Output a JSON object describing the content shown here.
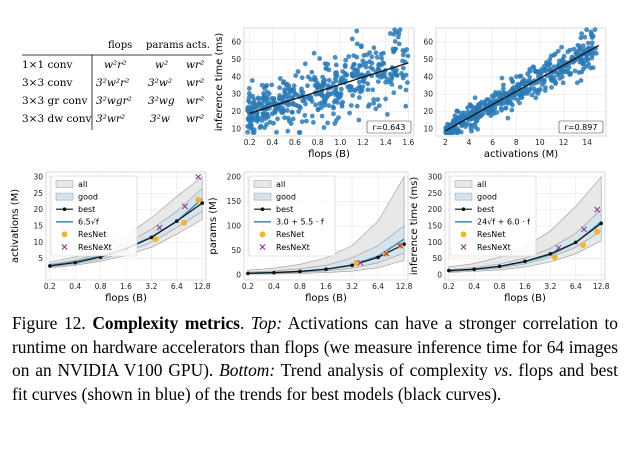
{
  "table": {
    "headers": [
      "flops",
      "params",
      "acts."
    ],
    "rows": [
      {
        "label": "1×1 conv",
        "flops": "w²r²",
        "params": "w²",
        "acts": "wr²"
      },
      {
        "label": "3×3 conv",
        "flops": "3²w²r²",
        "params": "3²w²",
        "acts": "wr²"
      },
      {
        "label": "3×3 gr conv",
        "flops": "3²wgr²",
        "params": "3²wg",
        "acts": "wr²"
      },
      {
        "label": "3×3 dw conv",
        "flops": "3²wr²",
        "params": "3²w",
        "acts": "wr²"
      }
    ]
  },
  "caption": {
    "figure_label": "Figure 12.",
    "title": "Complexity metrics",
    "top_label": "Top:",
    "top_text": "Activations can have a stronger correlation to runtime on hardware accelerators than flops (we measure inference time for 64 images on an NVIDIA V100 GPU).",
    "bottom_label": "Bottom:",
    "bottom_text_1": "Trend analysis of complexity",
    "vs": "vs",
    "bottom_text_2": ". flops and best fit curves (shown in blue) of the trends for best models (black curves)."
  },
  "colors": {
    "scatter": "#2a7ab7",
    "fit_line": "#111111",
    "best": "#111111",
    "fit_curve": "#4f8fb5",
    "resnet": "#f3b531",
    "resnext": "#8b2f8e",
    "all_band": "#e8e8e8",
    "good_band": "#d4e3ed"
  },
  "chart_data": [
    {
      "type": "scatter",
      "id": "top-left",
      "xlabel": "flops (B)",
      "ylabel": "inference time (ms)",
      "xlim": [
        0.15,
        1.65
      ],
      "ylim": [
        6,
        68
      ],
      "xticks": [
        0.2,
        0.4,
        0.6,
        0.8,
        1.0,
        1.2,
        1.4,
        1.6
      ],
      "xtick_labels": [
        "0.2",
        "0.4",
        "0.6",
        "0.8",
        "1.0",
        "1.2",
        "1.4",
        "1.6"
      ],
      "yticks": [
        10,
        20,
        30,
        40,
        50,
        60
      ],
      "ytick_labels": [
        "10",
        "20",
        "30",
        "40",
        "50",
        "60"
      ],
      "fit": {
        "x": [
          0.2,
          1.6
        ],
        "y": [
          19,
          48
        ]
      },
      "correlation_label": "r=0.643",
      "point_count": 480,
      "seed": 17,
      "spread": 12,
      "x_dist": [
        0.18,
        1.6
      ]
    },
    {
      "type": "scatter",
      "id": "top-right",
      "xlabel": "activations (M)",
      "ylabel": "",
      "xlim": [
        1.2,
        15.6
      ],
      "ylim": [
        6,
        68
      ],
      "xticks": [
        2,
        4,
        6,
        8,
        10,
        12,
        14
      ],
      "xtick_labels": [
        "2",
        "4",
        "6",
        "8",
        "10",
        "12",
        "14"
      ],
      "yticks": [
        10,
        20,
        30,
        40,
        50,
        60
      ],
      "ytick_labels": [
        "10",
        "20",
        "30",
        "40",
        "50",
        "60"
      ],
      "fit": {
        "x": [
          2,
          15
        ],
        "y": [
          9,
          58
        ]
      },
      "correlation_label": "r=0.897",
      "point_count": 480,
      "seed": 29,
      "spread": 6,
      "x_dist": [
        2,
        15
      ]
    },
    {
      "type": "line",
      "id": "bottom-left",
      "xlabel": "flops (B)",
      "ylabel": "activations (M)",
      "x_log2": true,
      "xticks": [
        0.2,
        0.4,
        0.8,
        1.6,
        3.2,
        6.4,
        12.8
      ],
      "xtick_labels": [
        "0.2",
        "0.4",
        "0.8",
        "1.6",
        "3.2",
        "6.4",
        "12.8"
      ],
      "ylim": [
        0,
        30
      ],
      "yticks": [
        5,
        10,
        15,
        20,
        25,
        30
      ],
      "ytick_labels": [
        "5",
        "10",
        "15",
        "20",
        "25",
        "30"
      ],
      "legend": [
        "all",
        "good",
        "best",
        "6.5√f",
        "ResNet",
        "ResNeXt"
      ],
      "x": [
        0.2,
        0.4,
        0.8,
        1.6,
        3.2,
        6.4,
        12.8
      ],
      "best": [
        2.8,
        3.8,
        5.5,
        8.0,
        11.5,
        16.5,
        22.0
      ],
      "fit": [
        2.9,
        4.1,
        5.8,
        8.2,
        11.6,
        16.4,
        23.3
      ],
      "all_low": [
        2.2,
        3.0,
        4.2,
        6.0,
        8.5,
        12.5,
        17.0
      ],
      "all_high": [
        4.0,
        5.5,
        8.0,
        12.0,
        17.5,
        24.0,
        30.0
      ],
      "good_low": [
        2.5,
        3.4,
        4.8,
        7.0,
        10.0,
        14.5,
        19.5
      ],
      "good_high": [
        3.3,
        4.6,
        6.6,
        9.6,
        14.0,
        19.5,
        26.5
      ],
      "resnet": {
        "x": [
          3.6,
          7.8,
          11.5
        ],
        "y": [
          11.0,
          16.0,
          23.0
        ]
      },
      "resnext": {
        "x": [
          4.0,
          8.0,
          11.5
        ],
        "y": [
          14.5,
          21.0,
          30.0
        ]
      }
    },
    {
      "type": "line",
      "id": "bottom-middle",
      "xlabel": "flops (B)",
      "ylabel": "params (M)",
      "x_log2": true,
      "xticks": [
        0.2,
        0.4,
        0.8,
        1.6,
        3.2,
        6.4,
        12.8
      ],
      "xtick_labels": [
        "0.2",
        "0.4",
        "0.8",
        "1.6",
        "3.2",
        "6.4",
        "12.8"
      ],
      "ylim": [
        0,
        200
      ],
      "yticks": [
        0,
        50,
        100,
        150,
        200
      ],
      "ytick_labels": [
        "0",
        "50",
        "100",
        "150",
        "200"
      ],
      "legend": [
        "all",
        "good",
        "best",
        "3.0 + 5.5 · f",
        "ResNet",
        "ResNeXt"
      ],
      "x": [
        0.2,
        0.4,
        0.8,
        1.6,
        3.2,
        6.4,
        12.8
      ],
      "best": [
        3.5,
        5.0,
        7.5,
        12.0,
        20.0,
        36.0,
        63.0
      ],
      "fit": [
        4.1,
        5.2,
        7.4,
        11.8,
        20.6,
        38.2,
        73.4
      ],
      "all_low": [
        2.0,
        2.5,
        3.5,
        5.0,
        8.0,
        15.0,
        30.0
      ],
      "all_high": [
        10.0,
        14.0,
        22.0,
        35.0,
        60.0,
        110.0,
        200.0
      ],
      "good_low": [
        2.8,
        3.8,
        5.5,
        8.5,
        14.0,
        25.0,
        45.0
      ],
      "good_high": [
        6.0,
        8.5,
        13.0,
        20.0,
        35.0,
        60.0,
        100.0
      ],
      "resnet": {
        "x": [
          3.6,
          7.8,
          11.5
        ],
        "y": [
          25.0,
          44.0,
          60.0
        ]
      },
      "resnext": {
        "x": [
          4.0,
          8.0,
          11.5
        ],
        "y": [
          25.0,
          44.0,
          60.0
        ]
      }
    },
    {
      "type": "line",
      "id": "bottom-right",
      "xlabel": "flops (B)",
      "ylabel": "inference time (ms)",
      "x_log2": true,
      "xticks": [
        0.2,
        0.4,
        0.8,
        1.6,
        3.2,
        6.4,
        12.8
      ],
      "xtick_labels": [
        "0.2",
        "0.4",
        "0.8",
        "1.6",
        "3.2",
        "6.4",
        "12.8"
      ],
      "ylim": [
        0,
        300
      ],
      "yticks": [
        0,
        50,
        100,
        150,
        200,
        250,
        300
      ],
      "ytick_labels": [
        "0",
        "50",
        "100",
        "150",
        "200",
        "250",
        "300"
      ],
      "legend": [
        "all",
        "good",
        "best",
        "24√f + 6.0 · f",
        "ResNet",
        "ResNeXt"
      ],
      "x": [
        0.2,
        0.4,
        0.8,
        1.6,
        3.2,
        6.4,
        12.8
      ],
      "best": [
        14,
        18,
        27,
        42,
        65,
        100,
        158
      ],
      "fit": [
        11.9,
        17.6,
        26.3,
        39.9,
        62.1,
        99.1,
        162.7
      ],
      "all_low": [
        8,
        11,
        16,
        25,
        40,
        65,
        105
      ],
      "all_high": [
        25,
        35,
        55,
        85,
        135,
        210,
        300
      ],
      "good_low": [
        11,
        15,
        22,
        34,
        54,
        85,
        135
      ],
      "good_high": [
        17,
        23,
        34,
        52,
        82,
        128,
        200
      ],
      "resnet": {
        "x": [
          3.6,
          7.8,
          11.5
        ],
        "y": [
          55,
          92,
          133
        ]
      },
      "resnext": {
        "x": [
          4.0,
          8.0,
          11.5
        ],
        "y": [
          83,
          140,
          200
        ]
      }
    }
  ]
}
